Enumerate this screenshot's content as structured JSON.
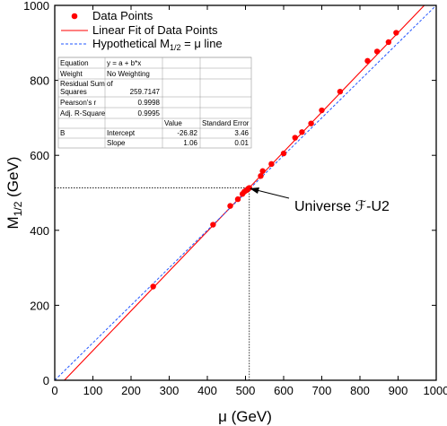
{
  "chart_data": {
    "type": "scatter",
    "xlabel": "μ (GeV)",
    "ylabel_main": "M",
    "ylabel_sub": "1/2",
    "ylabel_unit": " (GeV)",
    "xlim": [
      0,
      1000
    ],
    "ylim": [
      0,
      1000
    ],
    "xticks": [
      "0",
      "100",
      "200",
      "300",
      "400",
      "500",
      "600",
      "700",
      "800",
      "900",
      "1000"
    ],
    "yticks": [
      "0",
      "200",
      "400",
      "600",
      "800",
      "1000"
    ],
    "grid": false,
    "legend_position": "top-left",
    "series": [
      {
        "name": "Data Points",
        "kind": "markers",
        "color": "#ff0000",
        "points": [
          [
            258,
            250
          ],
          [
            415,
            415
          ],
          [
            460,
            465
          ],
          [
            480,
            483
          ],
          [
            492,
            497
          ],
          [
            497,
            503
          ],
          [
            503,
            507
          ],
          [
            507,
            511
          ],
          [
            510,
            513
          ],
          [
            540,
            545
          ],
          [
            545,
            558
          ],
          [
            568,
            577
          ],
          [
            600,
            605
          ],
          [
            630,
            647
          ],
          [
            648,
            662
          ],
          [
            672,
            685
          ],
          [
            700,
            720
          ],
          [
            748,
            770
          ],
          [
            820,
            852
          ],
          [
            845,
            877
          ],
          [
            875,
            902
          ],
          [
            895,
            927
          ]
        ]
      },
      {
        "name": "Linear Fit of Data Points",
        "kind": "line",
        "color": "#ff0000",
        "dash": "solid",
        "intercept": -26.82,
        "slope": 1.06
      },
      {
        "name": "Hypothetical M",
        "name_sub": "1/2",
        "name_rest": " = μ line",
        "kind": "line",
        "color": "#2255ff",
        "dash": "dashed",
        "intercept": 0,
        "slope": 1
      }
    ],
    "highlight": {
      "label": "Universe ℱ-U2",
      "x": 510,
      "y": 513
    },
    "stats_table": {
      "rows": [
        [
          "Equation",
          "y = a + b*x",
          "",
          ""
        ],
        [
          "Weight",
          "No Weighting",
          "",
          ""
        ],
        [
          "Residual Sum of Squares",
          "259.7147",
          "",
          ""
        ],
        [
          "Pearson's r",
          "0.9998",
          "",
          ""
        ],
        [
          "Adj. R-Square",
          "0.9995",
          "",
          ""
        ],
        [
          "",
          "",
          "Value",
          "Standard Error"
        ],
        [
          "B",
          "Intercept",
          "-26.82",
          "3.46"
        ],
        [
          "",
          "Slope",
          "1.06",
          "0.01"
        ]
      ]
    }
  }
}
